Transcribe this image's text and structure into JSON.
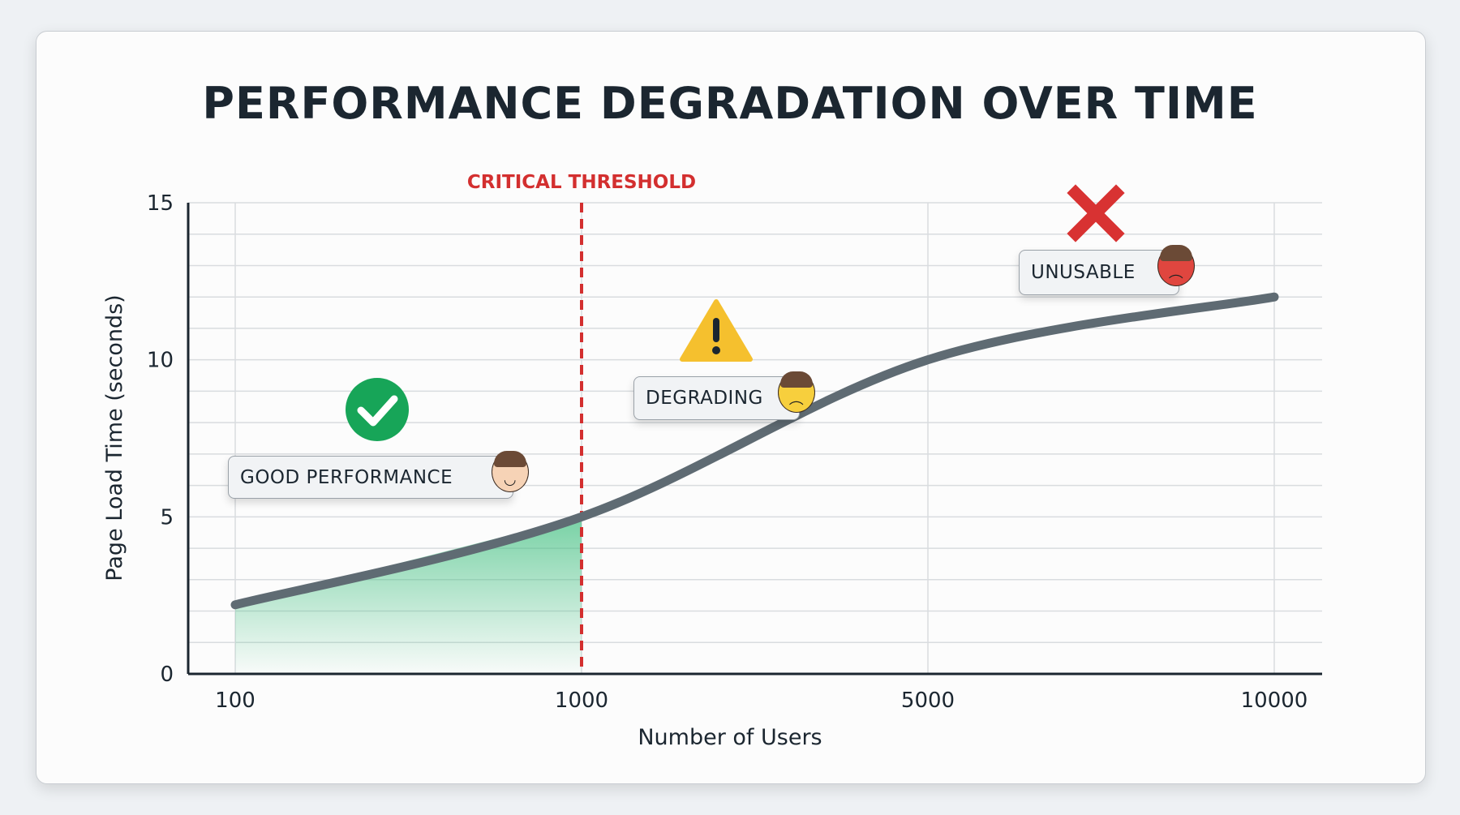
{
  "chart_data": {
    "type": "line",
    "title": "PERFORMANCE DEGRADATION OVER TIME",
    "xlabel": "Number of Users",
    "ylabel": "Page Load Time (seconds)",
    "categories": [
      "100",
      "1000",
      "5000",
      "10000"
    ],
    "series": [
      {
        "values": [
          2.2,
          5.0,
          10.0,
          12.0
        ]
      }
    ],
    "ylim": [
      0,
      15
    ],
    "yticks": [
      "0",
      "5",
      "10",
      "15"
    ],
    "grid": true,
    "threshold": {
      "x": "1000",
      "label": "CRITICAL THRESHOLD",
      "color": "#d32f2f"
    },
    "shaded_region": {
      "from": "100",
      "to": "1000",
      "color": "#3fbf7f"
    },
    "line_color": "#5f6b73",
    "annotations": [
      {
        "text": "GOOD PERFORMANCE",
        "icon": "check-circle-icon",
        "face": "happy-face-icon",
        "color": "#17a558"
      },
      {
        "text": "DEGRADING",
        "icon": "warning-triangle-icon",
        "face": "worried-face-icon",
        "color": "#f5c02e"
      },
      {
        "text": "UNUSABLE",
        "icon": "red-x-icon",
        "face": "angry-face-icon",
        "color": "#d83232"
      }
    ]
  }
}
